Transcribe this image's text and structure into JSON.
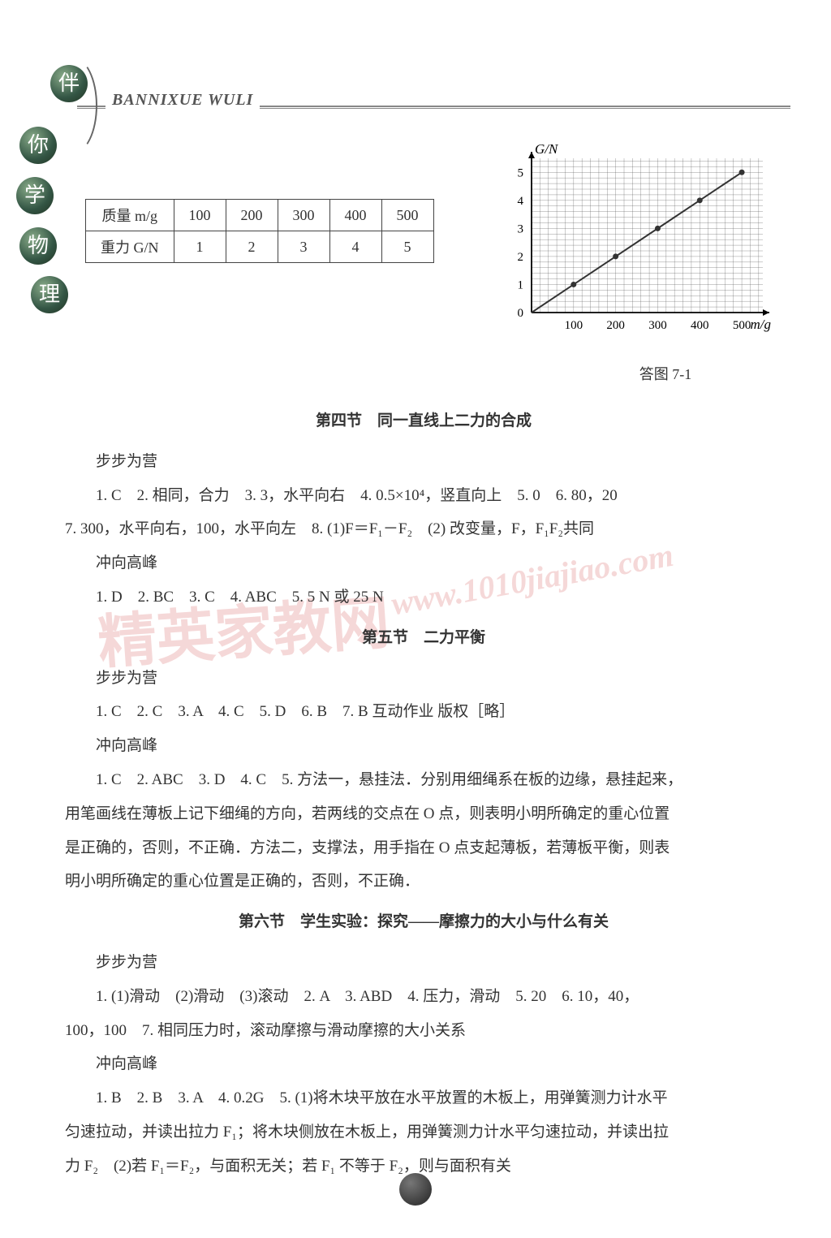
{
  "header": {
    "pinyin": "BANNIXUE WULI"
  },
  "side_chars": [
    "伴",
    "你",
    "学",
    "物",
    "理"
  ],
  "table": {
    "row_labels": [
      "质量 m/g",
      "重力 G/N"
    ],
    "mass": [
      "100",
      "200",
      "300",
      "400",
      "500"
    ],
    "weight": [
      "1",
      "2",
      "3",
      "4",
      "5"
    ]
  },
  "chart": {
    "y_label": "G/N",
    "x_label": "m/g",
    "x_ticks": [
      100,
      200,
      300,
      400,
      500
    ],
    "y_ticks": [
      0,
      1,
      2,
      3,
      4,
      5
    ],
    "xlim": [
      0,
      550
    ],
    "ylim": [
      0,
      5.5
    ],
    "points": [
      [
        100,
        1
      ],
      [
        200,
        2
      ],
      [
        300,
        3
      ],
      [
        400,
        4
      ],
      [
        500,
        5
      ]
    ],
    "grid_color": "#555555",
    "line_color": "#333333",
    "background": "#ffffff",
    "caption": "答图 7-1"
  },
  "sections": [
    {
      "title": "第四节　同一直线上二力的合成",
      "blocks": [
        {
          "head": "步步为营",
          "lines": [
            "1. C　2. 相同，合力　3. 3，水平向右　4. 0.5×10⁴，竖直向上　5. 0　6. 80，20",
            "7. 300，水平向右，100，水平向左　8. (1)F＝F₁－F₂　(2) 改变量，F，F₁F₂共同"
          ],
          "cont_start": 1
        },
        {
          "head": "冲向高峰",
          "lines": [
            "1. D　2. BC　3. C　4. ABC　5. 5 N 或 25 N"
          ]
        }
      ]
    },
    {
      "title": "第五节　二力平衡",
      "blocks": [
        {
          "head": "步步为营",
          "lines": [
            "1. C　2. C　3. A　4. C　5. D　6. B　7. B 互动作业 版权［略］"
          ]
        },
        {
          "head": "冲向高峰",
          "lines": [
            "1. C　2. ABC　3. D　4. C　5. 方法一，悬挂法．分别用细绳系在板的边缘，悬挂起来，",
            "用笔画线在薄板上记下细绳的方向，若两线的交点在 O 点，则表明小明所确定的重心位置",
            "是正确的，否则，不正确．方法二，支撑法，用手指在 O 点支起薄板，若薄板平衡，则表",
            "明小明所确定的重心位置是正确的，否则，不正确．"
          ],
          "cont_start": 1
        }
      ]
    },
    {
      "title": "第六节　学生实验：探究——摩擦力的大小与什么有关",
      "blocks": [
        {
          "head": "步步为营",
          "lines": [
            "1. (1)滑动　(2)滑动　(3)滚动　2. A　3. ABD　4. 压力，滑动　5. 20　6. 10，40，",
            "100，100　7. 相同压力时，滚动摩擦与滑动摩擦的大小关系"
          ],
          "cont_start": 1
        },
        {
          "head": "冲向高峰",
          "lines": [
            "1. B　2. B　3. A　4. 0.2G　5. (1)将木块平放在水平放置的木板上，用弹簧测力计水平",
            "匀速拉动，并读出拉力 F₁；将木块侧放在木板上，用弹簧测力计水平匀速拉动，并读出拉",
            "力 F₂　(2)若 F₁＝F₂，与面积无关；若 F₁ 不等于 F₂，则与面积有关"
          ],
          "cont_start": 1
        }
      ]
    }
  ],
  "watermarks": {
    "wm1": "精英家教网",
    "wm2": "www.1010jiajiao.com"
  }
}
